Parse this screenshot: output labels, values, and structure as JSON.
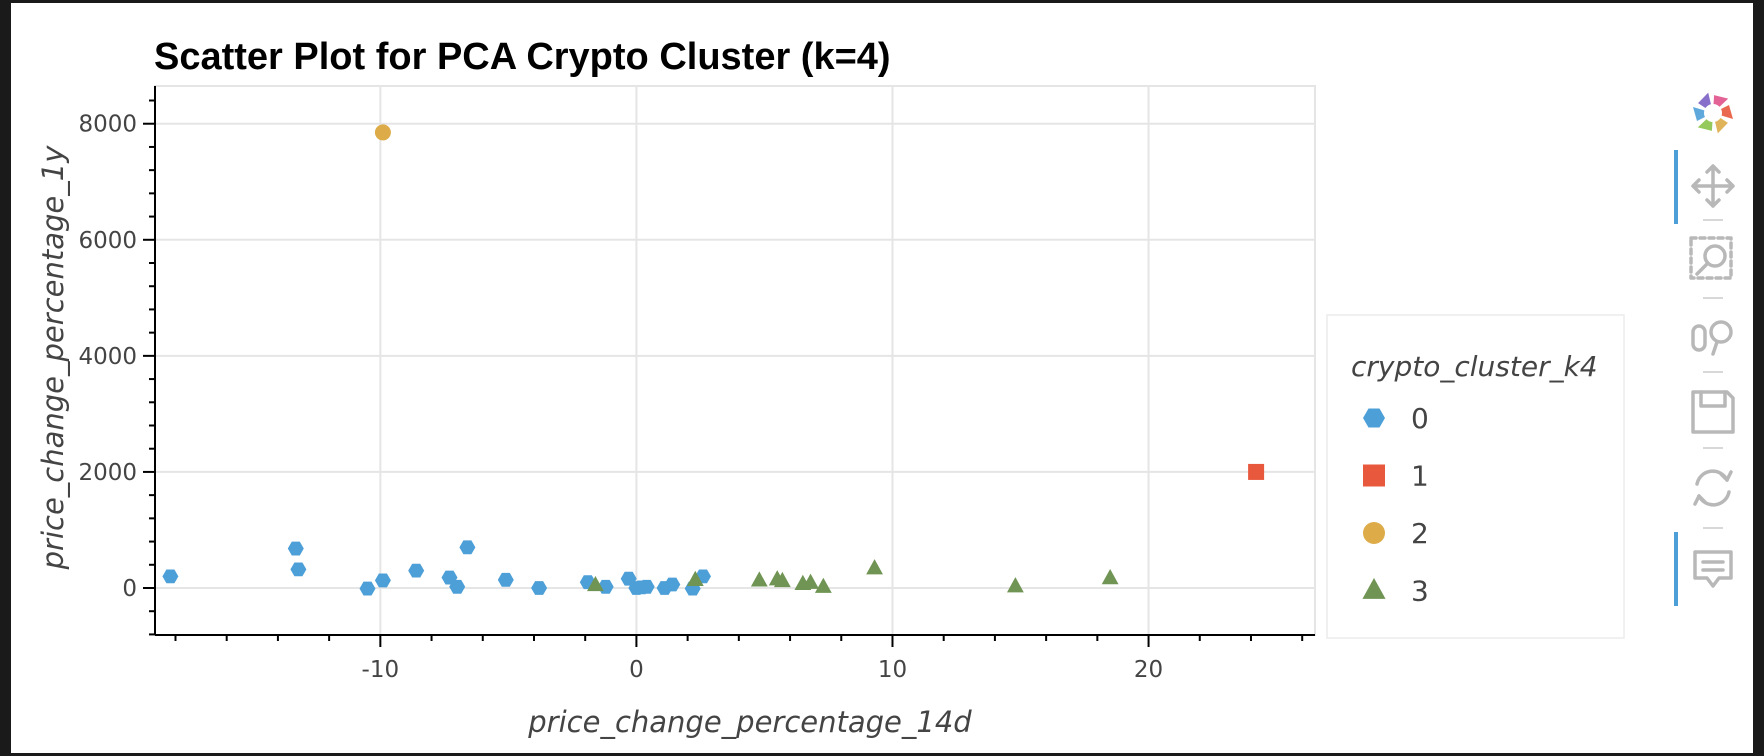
{
  "chart_data": {
    "type": "scatter",
    "title": "Scatter Plot for PCA Crypto Cluster (k=4)",
    "xlabel": "price_change_percentage_14d",
    "ylabel": "price_change_percentage_1y",
    "xlim": [
      -18.8,
      26.5
    ],
    "ylim": [
      -810,
      8650
    ],
    "x_ticks": [
      -10,
      0,
      10,
      20
    ],
    "y_ticks": [
      0,
      2000,
      4000,
      6000,
      8000
    ],
    "grid": true,
    "legend_title": "crypto_cluster_k4",
    "legend_position": "right",
    "series": [
      {
        "name": "0",
        "marker": "hex",
        "color": "#4d9fd8",
        "points": [
          [
            -18.2,
            200
          ],
          [
            -13.3,
            680
          ],
          [
            -13.2,
            320
          ],
          [
            -10.5,
            -10
          ],
          [
            -9.9,
            130
          ],
          [
            -8.6,
            300
          ],
          [
            -7.3,
            180
          ],
          [
            -7.0,
            20
          ],
          [
            -6.6,
            700
          ],
          [
            -5.1,
            140
          ],
          [
            -3.8,
            0
          ],
          [
            -1.9,
            100
          ],
          [
            -1.2,
            20
          ],
          [
            -0.3,
            160
          ],
          [
            0.0,
            0
          ],
          [
            0.2,
            10
          ],
          [
            0.4,
            20
          ],
          [
            1.1,
            0
          ],
          [
            1.4,
            60
          ],
          [
            2.2,
            -10
          ],
          [
            2.6,
            200
          ]
        ]
      },
      {
        "name": "1",
        "marker": "square",
        "color": "#e8583d",
        "points": [
          [
            24.2,
            2000
          ]
        ]
      },
      {
        "name": "2",
        "marker": "circle",
        "color": "#ddac48",
        "points": [
          [
            -9.9,
            7850
          ]
        ]
      },
      {
        "name": "3",
        "marker": "triangle",
        "color": "#6f9453",
        "points": [
          [
            -1.6,
            50
          ],
          [
            2.3,
            140
          ],
          [
            4.8,
            130
          ],
          [
            5.5,
            150
          ],
          [
            5.7,
            120
          ],
          [
            6.5,
            70
          ],
          [
            6.8,
            90
          ],
          [
            7.3,
            20
          ],
          [
            9.3,
            340
          ],
          [
            14.8,
            30
          ],
          [
            18.5,
            170
          ]
        ]
      }
    ]
  },
  "toolbar": {
    "tools": [
      {
        "icon": "bokeh-logo-icon",
        "active": false
      },
      {
        "icon": "pan-icon",
        "active": true
      },
      {
        "icon": "box-zoom-icon",
        "active": false
      },
      {
        "icon": "wheel-zoom-icon",
        "active": false
      },
      {
        "icon": "save-icon",
        "active": false
      },
      {
        "icon": "reset-icon",
        "active": false
      },
      {
        "icon": "hover-icon",
        "active": true
      }
    ],
    "accent_color": "#4d9fd8",
    "icon_color": "#b8b8b8"
  }
}
